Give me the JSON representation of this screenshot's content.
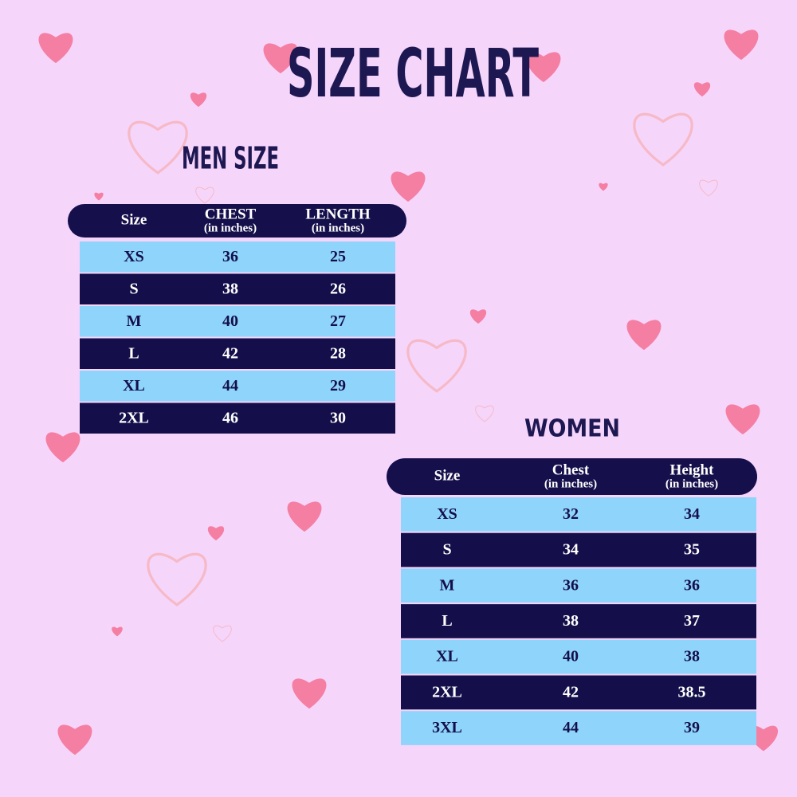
{
  "title": "SIZE CHART",
  "men": {
    "title": "MEN SIZE",
    "columns": [
      {
        "label": "Size"
      },
      {
        "label": "CHEST",
        "unit": "(in inches)"
      },
      {
        "label": "LENGTH",
        "unit": "(in inches)"
      }
    ],
    "rows": [
      [
        "XS",
        36,
        25
      ],
      [
        "S",
        38,
        26
      ],
      [
        "M",
        40,
        27
      ],
      [
        "L",
        42,
        28
      ],
      [
        "XL",
        44,
        29
      ],
      [
        "2XL",
        46,
        30
      ]
    ]
  },
  "women": {
    "title": "WOMEN",
    "columns": [
      {
        "label": "Size"
      },
      {
        "label": "Chest",
        "unit": "(in inches)"
      },
      {
        "label": "Height",
        "unit": "(in inches)"
      }
    ],
    "rows": [
      [
        "XS",
        32,
        34
      ],
      [
        "S",
        34,
        35
      ],
      [
        "M",
        36,
        36
      ],
      [
        "L",
        38,
        37
      ],
      [
        "XL",
        40,
        38
      ],
      [
        "2XL",
        42,
        38.5
      ],
      [
        "3XL",
        44,
        39
      ]
    ]
  }
}
